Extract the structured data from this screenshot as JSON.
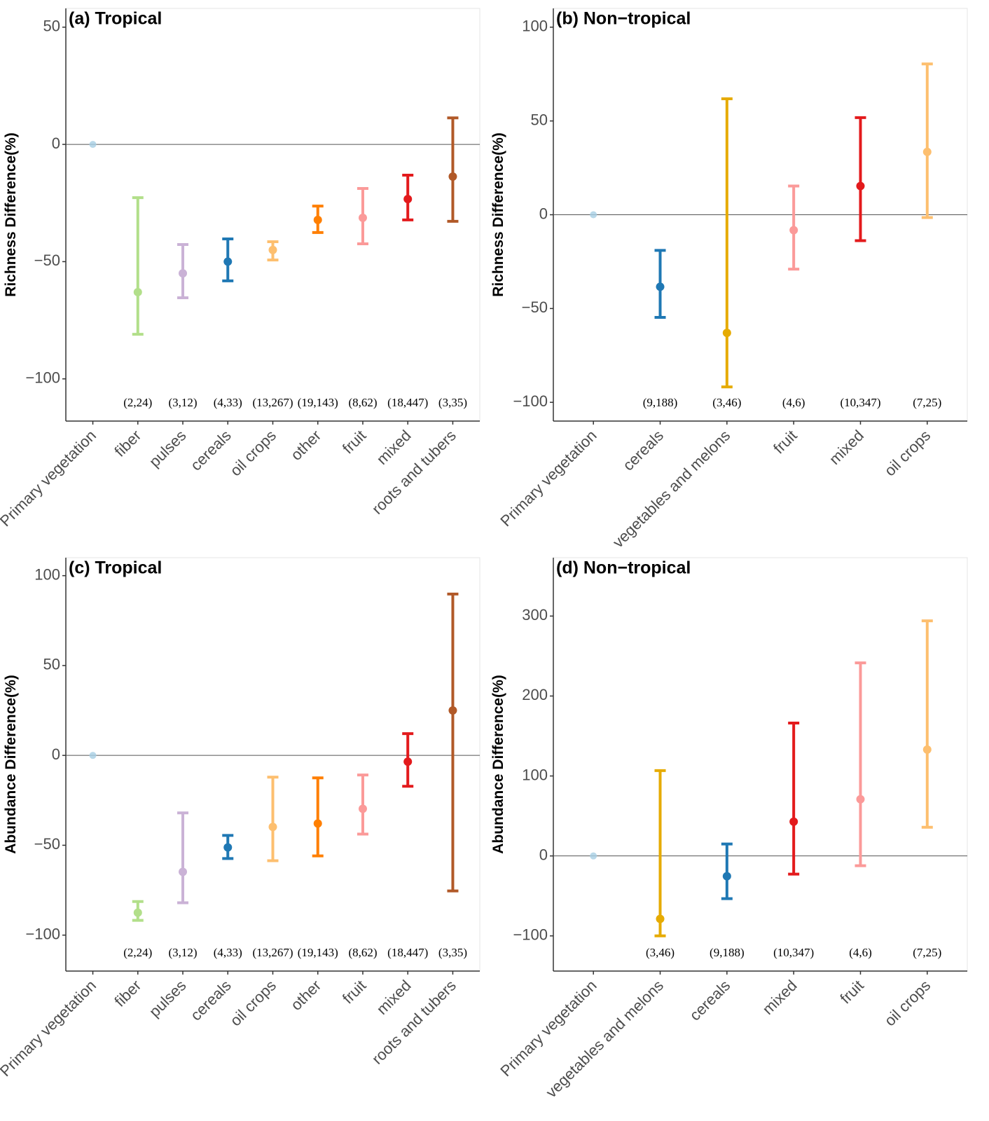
{
  "chart_data": [
    {
      "type": "errorbar",
      "title": "(a) Tropical",
      "ylabel": "Richness Difference(%)",
      "categories": [
        "Primary vegetation",
        "fiber",
        "pulses",
        "cereals",
        "oil crops",
        "other",
        "fruit",
        "mixed",
        "roots and tubers"
      ],
      "values": [
        0,
        -63,
        -55,
        -50,
        -45,
        -32.2,
        -31.3,
        -23.3,
        -13.7
      ],
      "lower": [
        null,
        -81,
        -65.4,
        -58.2,
        -49.3,
        -37.6,
        -42.4,
        -32.2,
        -32.8
      ],
      "upper": [
        null,
        -22.7,
        -42.7,
        -40.3,
        -41.5,
        -26.3,
        -18.8,
        -13.1,
        11.3
      ],
      "n_labels": [
        null,
        "(2,24)",
        "(3,12)",
        "(4,33)",
        "(13,267)",
        "(19,143)",
        "(8,62)",
        "(18,447)",
        "(3,35)"
      ],
      "colors": [
        "#a6cee3",
        "#b2df8a",
        "#cab2d6",
        "#1f78b4",
        "#fdbf6f",
        "#ff7f00",
        "#fb9a99",
        "#e31a1c",
        "#b15928"
      ],
      "hline": 0,
      "ylim": [
        -118,
        58
      ],
      "yticks": [
        {
          "value": -100,
          "label": "−100"
        },
        {
          "value": -50,
          "label": "−50"
        },
        0,
        50
      ]
    },
    {
      "type": "errorbar",
      "title": "(b) Non−tropical",
      "ylabel": "Richness Difference(%)",
      "categories": [
        "Primary vegetation",
        "cereals",
        "vegetables and melons",
        "fruit",
        "mixed",
        "oil crops"
      ],
      "values": [
        0,
        -38.4,
        -63,
        -8.2,
        15.3,
        33.5
      ],
      "lower": [
        null,
        -54.7,
        -91.8,
        -29,
        -13.8,
        -1.5
      ],
      "upper": [
        null,
        -19,
        61.8,
        15.3,
        51.8,
        80.4
      ],
      "n_labels": [
        null,
        "(9,188)",
        "(3,46)",
        "(4,6)",
        "(10,347)",
        "(7,25)"
      ],
      "colors": [
        "#a6cee3",
        "#1f78b4",
        "#e6ab02",
        "#fb9a99",
        "#e31a1c",
        "#fdbf6f"
      ],
      "hline": 0,
      "ylim": [
        -110,
        110
      ],
      "yticks": [
        {
          "value": -100,
          "label": "−100"
        },
        {
          "value": -50,
          "label": "−50"
        },
        0,
        50,
        100
      ]
    },
    {
      "type": "errorbar",
      "title": "(c) Tropical",
      "ylabel": "Abundance Difference(%)",
      "categories": [
        "Primary vegetation",
        "fiber",
        "pulses",
        "cereals",
        "oil crops",
        "other",
        "fruit",
        "mixed",
        "roots and tubers"
      ],
      "values": [
        0,
        -87.5,
        -64.8,
        -51.2,
        -39.8,
        -37.9,
        -29.7,
        -3.5,
        25
      ],
      "lower": [
        null,
        -91.8,
        -82,
        -57.4,
        -58.6,
        -55.9,
        -43.8,
        -17.2,
        -75.4
      ],
      "upper": [
        null,
        -81.3,
        -32,
        -44.5,
        -12.1,
        -12.5,
        -10.9,
        12.1,
        89.8
      ],
      "n_labels": [
        null,
        "(2,24)",
        "(3,12)",
        "(4,33)",
        "(13,267)",
        "(19,143)",
        "(8,62)",
        "(18,447)",
        "(3,35)"
      ],
      "colors": [
        "#a6cee3",
        "#b2df8a",
        "#cab2d6",
        "#1f78b4",
        "#fdbf6f",
        "#ff7f00",
        "#fb9a99",
        "#e31a1c",
        "#b15928"
      ],
      "hline": 0,
      "ylim": [
        -120,
        110
      ],
      "yticks": [
        {
          "value": -100,
          "label": "−100"
        },
        {
          "value": -50,
          "label": "−50"
        },
        0,
        50,
        100
      ]
    },
    {
      "type": "errorbar",
      "title": "(d) Non−tropical",
      "ylabel": "Abundance Difference(%)",
      "categories": [
        "Primary vegetation",
        "vegetables and melons",
        "cereals",
        "mixed",
        "fruit",
        "oil crops"
      ],
      "values": [
        0,
        -78.7,
        -25.4,
        42.9,
        70.9,
        133
      ],
      "lower": [
        null,
        -100,
        -53.4,
        -22.7,
        -12.2,
        35.9
      ],
      "upper": [
        null,
        106.7,
        14.9,
        166.2,
        241.5,
        294
      ],
      "n_labels": [
        null,
        "(3,46)",
        "(9,188)",
        "(10,347)",
        "(4,6)",
        "(7,25)"
      ],
      "colors": [
        "#a6cee3",
        "#e6ab02",
        "#1f78b4",
        "#e31a1c",
        "#fb9a99",
        "#fdbf6f"
      ],
      "hline": 0,
      "ylim": [
        -144,
        373
      ],
      "yticks": [
        {
          "value": -100,
          "label": "−100"
        },
        0,
        100,
        200,
        300
      ]
    }
  ]
}
